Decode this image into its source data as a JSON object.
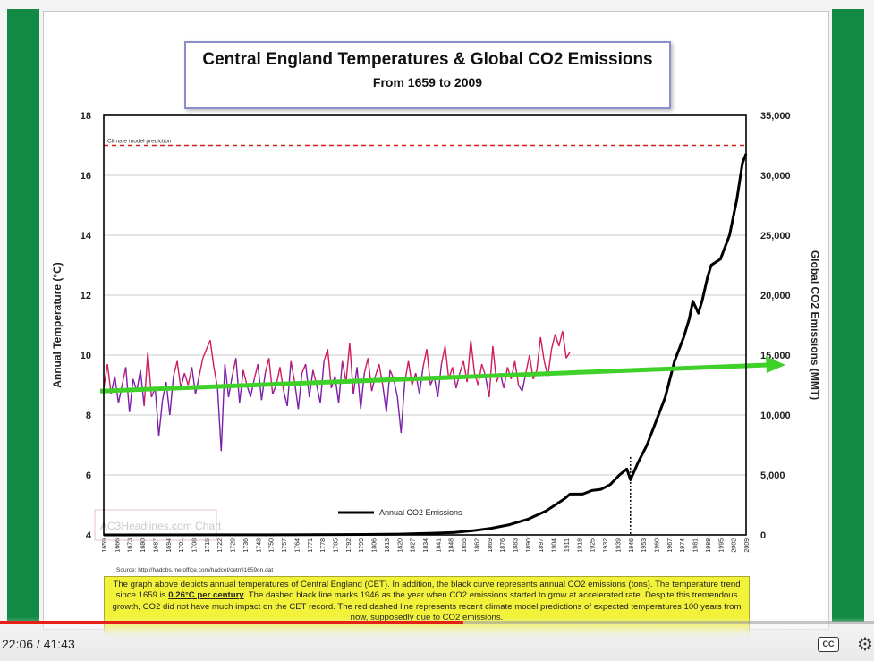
{
  "slide": {
    "title": "Central England Temperatures & Global CO2 Emissions",
    "subtitle": "From 1659 to 2009",
    "source": "Source: http://hadobs.metoffice.com/hadcet/cetml1659on.dat",
    "watermark": "AC3Headlines.com Chart",
    "caption_parts": [
      "The graph above depicts annual temperatures of Central England (CET). In addition, the black curve represents annual CO2 emissions (tons). The temperature trend since 1659 is ",
      "0.26°C per century",
      ". The dashed black line marks 1946 as the year when CO2 emissions started to grow at accelerated rate. Despite this tremendous growth, CO2 did not have much impact on the CET record. The red dashed line represents recent climate model predictions of expected temperatures 100 years from now, supposedly due to CO2 emissions."
    ]
  },
  "chart_data": {
    "type": "line",
    "title": "Central England Temperatures & Global CO2 Emissions",
    "subtitle": "From 1659 to 2009",
    "ylabel": "Annual Temperature (°C)",
    "y2label": "Global CO2 Emissions (MMT)",
    "ylim": [
      4,
      18
    ],
    "y2lim": [
      0,
      35000
    ],
    "xlim": [
      1659,
      2009
    ],
    "y_ticks": [
      4,
      6,
      8,
      10,
      12,
      14,
      16,
      18
    ],
    "y2_ticks": [
      0,
      5000,
      10000,
      15000,
      20000,
      25000,
      30000,
      35000
    ],
    "y2_tick_labels": [
      "0",
      "5,000",
      "10,000",
      "15,000",
      "20,000",
      "25,000",
      "30,000",
      "35,000"
    ],
    "x_ticks": [
      "1659",
      "1666",
      "1673",
      "1680",
      "1687",
      "1694",
      "1701",
      "1708",
      "1715",
      "1722",
      "1729",
      "1736",
      "1743",
      "1750",
      "1757",
      "1764",
      "1771",
      "1778",
      "1785",
      "1792",
      "1799",
      "1806",
      "1813",
      "1820",
      "1827",
      "1834",
      "1841",
      "1848",
      "1855",
      "1862",
      "1869",
      "1876",
      "1883",
      "1890",
      "1897",
      "1904",
      "1911",
      "1918",
      "1925",
      "1932",
      "1939",
      "1946",
      "1953",
      "1960",
      "1967",
      "1974",
      "1981",
      "1988",
      "1995",
      "2002",
      "2009"
    ],
    "grid": "horizontal",
    "annotations": {
      "prediction_label": "Climate model prediction",
      "prediction_level": 17,
      "marker_year": 1946,
      "trend_start": 8.8,
      "trend_end": 9.7
    },
    "legend": {
      "position": "bottom-center",
      "entries": [
        "Annual CO2 Emissions"
      ]
    },
    "series": [
      {
        "name": "Annual CO2 Emissions",
        "axis": "right",
        "color": "#000000",
        "x": [
          1659,
          1750,
          1800,
          1820,
          1840,
          1850,
          1860,
          1870,
          1880,
          1890,
          1900,
          1905,
          1910,
          1913,
          1920,
          1925,
          1930,
          1935,
          1940,
          1944,
          1946,
          1950,
          1955,
          1960,
          1965,
          1970,
          1975,
          1978,
          1980,
          1983,
          1985,
          1988,
          1990,
          1995,
          2000,
          2004,
          2007,
          2009
        ],
        "values": [
          0,
          10,
          40,
          70,
          150,
          200,
          350,
          550,
          850,
          1300,
          2000,
          2500,
          3000,
          3400,
          3400,
          3700,
          3800,
          4200,
          5000,
          5500,
          4600,
          6000,
          7500,
          9500,
          11500,
          14500,
          16500,
          18000,
          19500,
          18500,
          19500,
          21500,
          22500,
          23000,
          25000,
          28000,
          31000,
          31800
        ]
      },
      {
        "name": "Annual Temperature",
        "axis": "left",
        "color_low": "#7a1fa8",
        "color_high": "#d0195e",
        "x_start": 1659,
        "x_step": 2,
        "values": [
          8.9,
          9.7,
          8.7,
          9.3,
          8.4,
          9.0,
          9.6,
          8.1,
          9.2,
          8.8,
          9.5,
          8.3,
          10.1,
          8.6,
          8.9,
          7.3,
          8.5,
          9.1,
          8.0,
          9.3,
          9.8,
          8.9,
          9.4,
          9.0,
          9.6,
          8.7,
          9.3,
          9.9,
          10.2,
          10.5,
          9.6,
          8.9,
          6.8,
          9.7,
          8.6,
          9.3,
          9.9,
          8.4,
          9.5,
          9.0,
          8.6,
          9.2,
          9.7,
          8.5,
          9.4,
          9.9,
          8.7,
          9.0,
          9.6,
          8.8,
          8.3,
          9.8,
          9.1,
          8.2,
          9.4,
          9.7,
          8.6,
          9.5,
          9.0,
          8.4,
          9.8,
          10.2,
          8.9,
          9.3,
          8.4,
          9.8,
          9.1,
          10.4,
          8.7,
          9.6,
          8.2,
          9.4,
          9.9,
          8.8,
          9.3,
          9.7,
          9.0,
          8.1,
          9.5,
          9.2,
          8.6,
          7.4,
          9.1,
          9.8,
          9.0,
          9.4,
          8.7,
          9.6,
          10.2,
          9.0,
          9.3,
          8.6,
          9.7,
          10.3,
          9.2,
          9.6,
          8.9,
          9.4,
          9.8,
          9.1,
          10.5,
          9.4,
          9.0,
          9.7,
          9.3,
          8.6,
          10.3,
          9.1,
          9.4,
          8.9,
          9.6,
          9.2,
          9.8,
          9.0,
          8.8,
          9.4,
          10.0,
          9.2,
          9.5,
          10.6,
          9.8,
          9.3,
          10.2,
          10.7,
          10.3,
          10.8,
          9.9,
          10.1
        ]
      }
    ]
  },
  "player": {
    "time_text": "22:06 / 41:43",
    "progress_fraction": 0.53,
    "progress_color": "#e62117",
    "cc_label": "CC",
    "settings_icon": "gear-icon"
  },
  "colors": {
    "green_frame": "#138a44",
    "trend_arrow": "#3fd12a",
    "prediction_line": "#d62020",
    "caption_bg": "#f2f23a"
  }
}
